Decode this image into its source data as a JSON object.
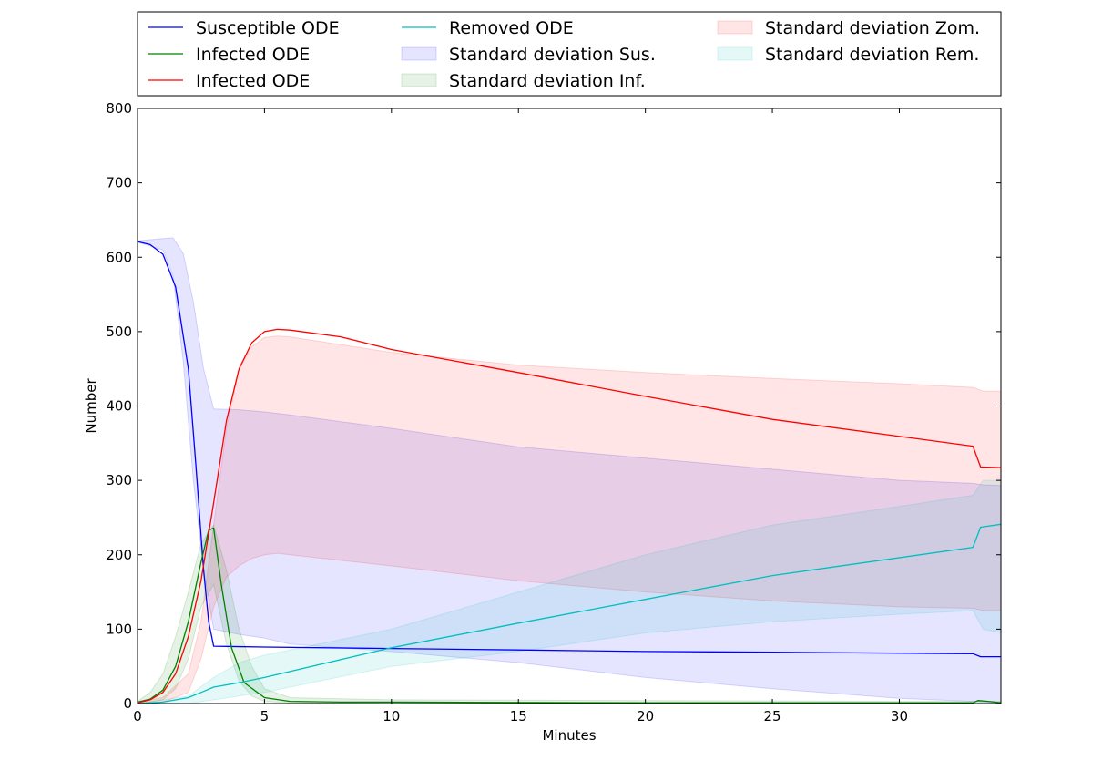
{
  "chart_data": {
    "type": "line",
    "xlabel": "Minutes",
    "ylabel": "Number",
    "xlim": [
      0,
      34
    ],
    "ylim": [
      0,
      800
    ],
    "xticks": [
      0,
      5,
      10,
      15,
      20,
      25,
      30
    ],
    "yticks": [
      0,
      100,
      200,
      300,
      400,
      500,
      600,
      700,
      800
    ],
    "legend_placement": "top, outside plot, 3 columns",
    "series": [
      {
        "name": "Susceptible ODE",
        "color": "#0000ff",
        "x": [
          0,
          0.5,
          1,
          1.5,
          2,
          2.3,
          2.6,
          2.8,
          3,
          5,
          10,
          15,
          20,
          25,
          32.9,
          33.2,
          34
        ],
        "y": [
          621,
          617,
          604,
          560,
          450,
          320,
          180,
          110,
          77,
          76,
          74,
          72,
          70,
          69,
          67,
          63,
          63
        ]
      },
      {
        "name": "Infected ODE",
        "color": "#008000",
        "x": [
          0,
          0.5,
          1,
          1.5,
          2,
          2.5,
          2.8,
          3,
          3.3,
          3.7,
          4.2,
          5,
          6,
          8,
          10,
          20,
          32.9,
          33.1,
          33.5,
          34
        ],
        "y": [
          2,
          6,
          18,
          50,
          110,
          190,
          233,
          236,
          160,
          75,
          28,
          8,
          3,
          2,
          2,
          1,
          1,
          4,
          3,
          1
        ]
      },
      {
        "name": "Infected ODE",
        "color": "#ff0000",
        "x": [
          0,
          0.5,
          1,
          1.5,
          2,
          2.5,
          3,
          3.5,
          4,
          4.5,
          5,
          5.5,
          6,
          8,
          10,
          15,
          20,
          25,
          32.9,
          33.2,
          34
        ],
        "y": [
          1,
          5,
          15,
          40,
          90,
          165,
          270,
          380,
          450,
          485,
          500,
          503,
          502,
          493,
          476,
          445,
          413,
          382,
          346,
          318,
          317
        ]
      },
      {
        "name": "Removed ODE",
        "color": "#00bfbf",
        "x": [
          0,
          1,
          2,
          2.5,
          3,
          4,
          5,
          10,
          15,
          20,
          25,
          32.9,
          33.2,
          34
        ],
        "y": [
          0,
          2,
          8,
          15,
          22,
          28,
          35,
          75,
          108,
          140,
          172,
          210,
          237,
          241
        ]
      }
    ],
    "bands": [
      {
        "name": "Standard deviation Sus.",
        "color": "#0000ff",
        "x": [
          0,
          1,
          1.4,
          1.8,
          2.2,
          2.6,
          3,
          4,
          5,
          6,
          10,
          15,
          20,
          25,
          30,
          32.9,
          33.3,
          34
        ],
        "upper": [
          622,
          625,
          626,
          605,
          540,
          450,
          396,
          395,
          392,
          388,
          370,
          345,
          330,
          315,
          300,
          296,
          294,
          293
        ],
        "lower": [
          620,
          610,
          575,
          460,
          300,
          180,
          100,
          93,
          88,
          80,
          70,
          55,
          35,
          20,
          7,
          3,
          2,
          1
        ]
      },
      {
        "name": "Standard deviation Inf.",
        "color": "#008000",
        "x": [
          0,
          0.5,
          1,
          1.5,
          2,
          2.5,
          3,
          3.5,
          4,
          4.5,
          5,
          6,
          10,
          20,
          30,
          34
        ],
        "upper": [
          3,
          15,
          40,
          90,
          150,
          215,
          240,
          180,
          100,
          50,
          20,
          8,
          5,
          4,
          3,
          3
        ],
        "lower": [
          0,
          2,
          5,
          20,
          60,
          130,
          160,
          80,
          30,
          10,
          3,
          1,
          0,
          0,
          0,
          0
        ]
      },
      {
        "name": "Standard deviation Zom.",
        "color": "#ff0000",
        "x": [
          0,
          1,
          2,
          2.5,
          3,
          3.5,
          4,
          4.5,
          5,
          5.5,
          6,
          10,
          15,
          20,
          25,
          30,
          32.9,
          33.3,
          34
        ],
        "upper": [
          2,
          8,
          40,
          110,
          240,
          370,
          450,
          480,
          492,
          494,
          493,
          472,
          455,
          445,
          437,
          430,
          425,
          420,
          420
        ],
        "lower": [
          0,
          2,
          15,
          60,
          130,
          170,
          185,
          195,
          200,
          202,
          200,
          185,
          165,
          150,
          138,
          130,
          128,
          125,
          125
        ]
      },
      {
        "name": "Standard deviation Rem.",
        "color": "#00bfbf",
        "x": [
          0,
          2,
          3,
          4,
          5,
          10,
          15,
          20,
          25,
          30,
          32.9,
          33.3,
          34
        ],
        "upper": [
          0,
          10,
          35,
          55,
          65,
          100,
          150,
          200,
          240,
          265,
          280,
          300,
          300
        ],
        "lower": [
          0,
          0,
          5,
          10,
          15,
          50,
          70,
          95,
          110,
          120,
          125,
          100,
          95
        ]
      }
    ],
    "legend": [
      {
        "label": "Susceptible ODE",
        "kind": "line",
        "color": "#0000ff"
      },
      {
        "label": "Infected ODE",
        "kind": "line",
        "color": "#008000"
      },
      {
        "label": "Infected ODE",
        "kind": "line",
        "color": "#ff0000"
      },
      {
        "label": "Removed ODE",
        "kind": "line",
        "color": "#00bfbf"
      },
      {
        "label": "Standard deviation Sus.",
        "kind": "patch",
        "color": "#0000ff"
      },
      {
        "label": "Standard deviation Inf.",
        "kind": "patch",
        "color": "#008000"
      },
      {
        "label": "Standard deviation Zom.",
        "kind": "patch",
        "color": "#ff0000"
      },
      {
        "label": "Standard deviation Rem.",
        "kind": "patch",
        "color": "#00bfbf"
      }
    ]
  }
}
